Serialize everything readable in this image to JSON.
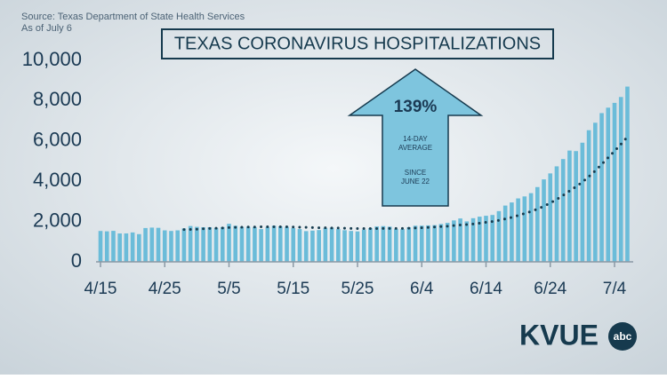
{
  "chart_data": {
    "type": "bar",
    "title": "TEXAS CORONAVIRUS HOSPITALIZATIONS",
    "source": "Source: Texas Department of State Health Services",
    "as_of": "As of July 6",
    "annotation": {
      "value": "139%",
      "line1": "14-DAY",
      "line2": "AVERAGE",
      "line3": "SINCE",
      "line4": "JUNE 22"
    },
    "logo": {
      "text": "KVUE",
      "badge": "abc"
    },
    "categories": [
      "4/15",
      null,
      null,
      null,
      null,
      null,
      null,
      null,
      null,
      null,
      "4/25",
      null,
      null,
      null,
      null,
      null,
      null,
      null,
      null,
      null,
      "5/5",
      null,
      null,
      null,
      null,
      null,
      null,
      null,
      null,
      null,
      "5/15",
      null,
      null,
      null,
      null,
      null,
      null,
      null,
      null,
      null,
      "5/25",
      null,
      null,
      null,
      null,
      null,
      null,
      null,
      null,
      null,
      "6/4",
      null,
      null,
      null,
      null,
      null,
      null,
      null,
      null,
      null,
      "6/14",
      null,
      null,
      null,
      null,
      null,
      null,
      null,
      null,
      null,
      "6/24",
      null,
      null,
      null,
      null,
      null,
      null,
      null,
      null,
      null,
      "7/4",
      null,
      null
    ],
    "series": [
      {
        "name": "Hospitalizations",
        "color": "#6bbcd9",
        "style": "bars",
        "values": [
          1532,
          1514,
          1538,
          1409,
          1411,
          1459,
          1375,
          1678,
          1700,
          1689,
          1563,
          1533,
          1563,
          1660,
          1778,
          1736,
          1716,
          1719,
          1681,
          1725,
          1888,
          1791,
          1732,
          1735,
          1716,
          1626,
          1725,
          1791,
          1760,
          1734,
          1676,
          1626,
          1525,
          1551,
          1578,
          1674,
          1692,
          1626,
          1571,
          1534,
          1511,
          1600,
          1678,
          1756,
          1773,
          1745,
          1632,
          1626,
          1714,
          1792,
          1796,
          1810,
          1822,
          1878,
          1935,
          2056,
          2153,
          2008,
          2166,
          2242,
          2287,
          2326,
          2518,
          2793,
          2947,
          3148,
          3247,
          3409,
          3711,
          4092,
          4389,
          4739,
          5102,
          5523,
          5497,
          5913,
          6533,
          6904,
          7382,
          7652,
          7890,
          8181,
          8698
        ]
      },
      {
        "name": "14-day average",
        "color": "#173c4f",
        "style": "dots",
        "values": [
          null,
          null,
          null,
          null,
          null,
          null,
          null,
          null,
          null,
          null,
          null,
          null,
          null,
          1600,
          1610,
          1620,
          1640,
          1660,
          1670,
          1680,
          1700,
          1710,
          1720,
          1730,
          1730,
          1740,
          1740,
          1740,
          1740,
          1740,
          1730,
          1720,
          1710,
          1700,
          1690,
          1690,
          1680,
          1680,
          1670,
          1660,
          1650,
          1650,
          1650,
          1650,
          1660,
          1660,
          1660,
          1660,
          1670,
          1680,
          1690,
          1710,
          1730,
          1750,
          1770,
          1800,
          1830,
          1850,
          1880,
          1920,
          1960,
          2000,
          2060,
          2130,
          2210,
          2300,
          2400,
          2500,
          2620,
          2760,
          2920,
          3100,
          3300,
          3520,
          3730,
          3960,
          4230,
          4520,
          4840,
          5170,
          5500,
          5840,
          6200
        ]
      }
    ],
    "ylim": [
      0,
      10000
    ],
    "yticks": [
      0,
      {
        "value": 2000,
        "label": "2,000"
      },
      {
        "value": 4000,
        "label": "4,000"
      },
      {
        "value": 6000,
        "label": "6,000"
      },
      {
        "value": 8000,
        "label": "8,000"
      },
      {
        "value": 10000,
        "label": "10,000"
      }
    ]
  }
}
